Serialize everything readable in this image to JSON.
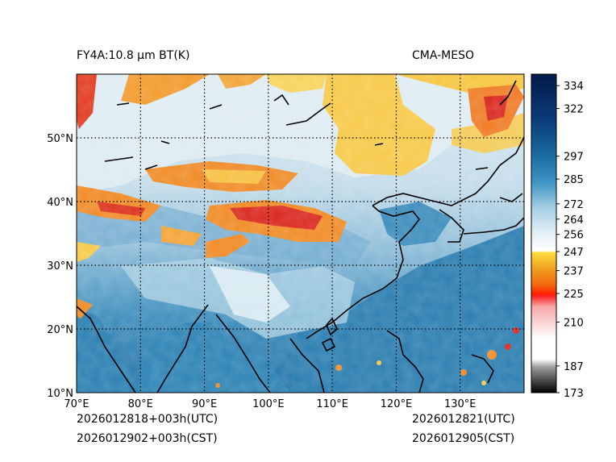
{
  "figure": {
    "title_left": "FY4A:10.8 µm BT(K)",
    "title_right": "CMA-MESO",
    "time_utc_left": "2026012818+003h(UTC)",
    "time_cst_left": "2026012902+003h(CST)",
    "time_utc_right": "2026012821(UTC)",
    "time_cst_right": "2026012905(CST)"
  },
  "map": {
    "lon_range": [
      70,
      140
    ],
    "lat_range": [
      10,
      60
    ],
    "lon_ticks": [
      70,
      80,
      90,
      100,
      110,
      120,
      130
    ],
    "lon_tick_labels": [
      "70°E",
      "80°E",
      "90°E",
      "100°E",
      "110°E",
      "120°E",
      "130°E"
    ],
    "lat_ticks": [
      10,
      20,
      30,
      40,
      50
    ],
    "lat_tick_labels": [
      "10°N",
      "20°N",
      "30°N",
      "40°N",
      "50°N"
    ]
  },
  "colorbar": {
    "units": "K",
    "range": [
      173,
      340
    ],
    "tick_values": [
      334,
      322,
      297,
      285,
      272,
      264,
      256,
      247,
      237,
      225,
      210,
      187,
      173
    ],
    "tick_labels": [
      "334",
      "322",
      "297",
      "285",
      "272",
      "264",
      "256",
      "247",
      "237",
      "225",
      "210",
      "187",
      "173"
    ]
  },
  "colors": {
    "ocean": "#2f86b6",
    "warm_land": "#7bb3d3",
    "cloud_white": "#e6f0f5",
    "cloud_cyan": "#bcd9e6",
    "cloud_yellow": "#f7c948",
    "cloud_orange": "#f08a24",
    "cloud_red": "#d9261c",
    "coast": "#000000",
    "grid": "#000000"
  }
}
